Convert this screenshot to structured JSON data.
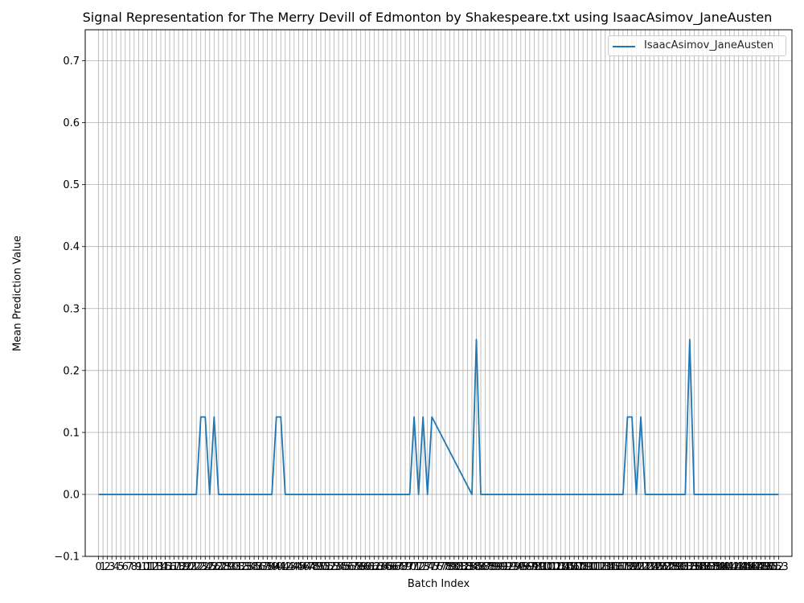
{
  "chart_data": {
    "type": "line",
    "title": "Signal Representation for The Merry Devill of Edmonton by Shakespeare.txt using IsaacAsimov_JaneAusten",
    "xlabel": "Batch Index",
    "ylabel": "Mean Prediction Value",
    "ylim": [
      -0.1,
      0.75
    ],
    "yticks": [
      -0.1,
      0.0,
      0.1,
      0.2,
      0.3,
      0.4,
      0.5,
      0.6,
      0.7
    ],
    "xlim": [
      -3,
      156
    ],
    "grid": true,
    "legend_position": "top-right",
    "series": [
      {
        "name": "IsaacAsimov_JaneAusten",
        "color": "#1f77b4",
        "x": [
          0,
          22,
          23,
          24,
          25,
          26,
          27,
          39,
          40,
          41,
          42,
          70,
          71,
          72,
          73,
          74,
          75,
          84,
          85,
          86,
          118,
          119,
          120,
          121,
          122,
          123,
          132,
          133,
          134,
          153
        ],
        "y": [
          0,
          0,
          0.125,
          0.125,
          0,
          0.125,
          0,
          0,
          0.125,
          0.125,
          0,
          0,
          0.125,
          0,
          0.125,
          0,
          0.125,
          0,
          0.25,
          0,
          0,
          0.125,
          0.125,
          0,
          0.125,
          0,
          0,
          0.25,
          0,
          0
        ]
      }
    ],
    "x_ticks": {
      "start": 0,
      "end": 153,
      "step": 1
    }
  },
  "legend": {
    "label": "IsaacAsimov_JaneAusten"
  }
}
